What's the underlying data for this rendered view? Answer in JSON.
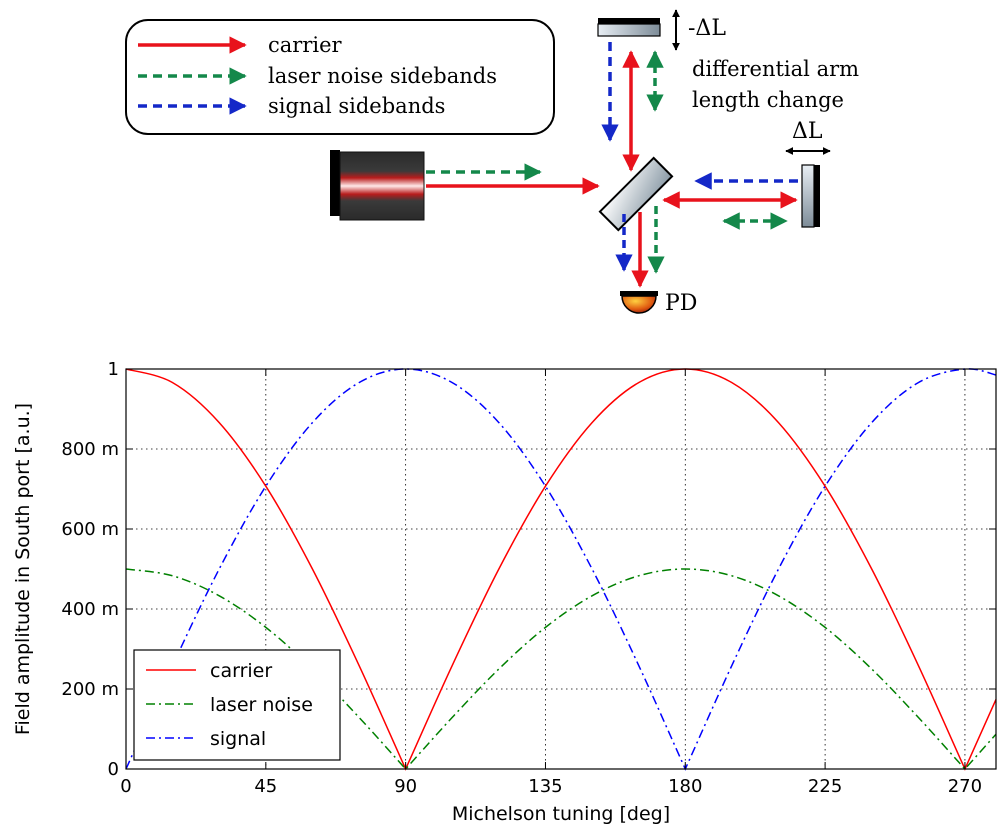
{
  "diagram": {
    "legend": {
      "items": [
        {
          "label": "carrier",
          "color": "#e8121c",
          "style": "solid"
        },
        {
          "label": "laser noise sidebands",
          "color": "#14884a",
          "style": "dashed"
        },
        {
          "label": "signal sidebands",
          "color": "#1428c8",
          "style": "dashed"
        }
      ]
    },
    "north_mirror_label": "-ΔL",
    "differential_line1": "differential arm",
    "differential_line2": "length change",
    "east_mirror_label": "ΔL",
    "photodiode_label": "PD"
  },
  "chart_data": {
    "type": "line",
    "xlabel": "Michelson tuning [deg]",
    "ylabel": "Field amplitude in South port [a.u.]",
    "xlim": [
      0,
      280
    ],
    "ylim": [
      0,
      1
    ],
    "xticks": [
      0,
      45,
      90,
      135,
      180,
      225,
      270
    ],
    "xtick_labels": [
      "0",
      "45",
      "90",
      "135",
      "180",
      "225",
      "270"
    ],
    "yticks": [
      0,
      0.2,
      0.4,
      0.6,
      0.8,
      1.0
    ],
    "ytick_labels": [
      "0",
      "200 m",
      "400 m",
      "600 m",
      "800 m",
      "1"
    ],
    "grid": true,
    "legend_position": "lower-left",
    "series": [
      {
        "name": "carrier",
        "color": "#ff0000",
        "style": "solid",
        "x": [
          0,
          15,
          30,
          45,
          60,
          75,
          90,
          105,
          120,
          135,
          150,
          165,
          180,
          195,
          210,
          225,
          240,
          255,
          270,
          280
        ],
        "y": [
          1.0,
          0.966,
          0.866,
          0.707,
          0.5,
          0.259,
          0.0,
          0.259,
          0.5,
          0.707,
          0.866,
          0.966,
          1.0,
          0.966,
          0.866,
          0.707,
          0.5,
          0.259,
          0.0,
          0.174
        ]
      },
      {
        "name": "laser noise",
        "color": "#008000",
        "style": "dashdot",
        "x": [
          0,
          15,
          30,
          45,
          60,
          75,
          90,
          105,
          120,
          135,
          150,
          165,
          180,
          195,
          210,
          225,
          240,
          255,
          270,
          280
        ],
        "y": [
          0.5,
          0.483,
          0.433,
          0.354,
          0.25,
          0.129,
          0.0,
          0.129,
          0.25,
          0.354,
          0.433,
          0.483,
          0.5,
          0.483,
          0.433,
          0.354,
          0.25,
          0.129,
          0.0,
          0.087
        ]
      },
      {
        "name": "signal",
        "color": "#0000ff",
        "style": "dashdot",
        "x": [
          0,
          15,
          30,
          45,
          60,
          75,
          90,
          105,
          120,
          135,
          150,
          165,
          180,
          195,
          210,
          225,
          240,
          255,
          270,
          280
        ],
        "y": [
          0.0,
          0.259,
          0.5,
          0.707,
          0.866,
          0.966,
          1.0,
          0.966,
          0.866,
          0.707,
          0.5,
          0.259,
          0.0,
          0.259,
          0.5,
          0.707,
          0.866,
          0.966,
          1.0,
          0.985
        ]
      }
    ]
  }
}
